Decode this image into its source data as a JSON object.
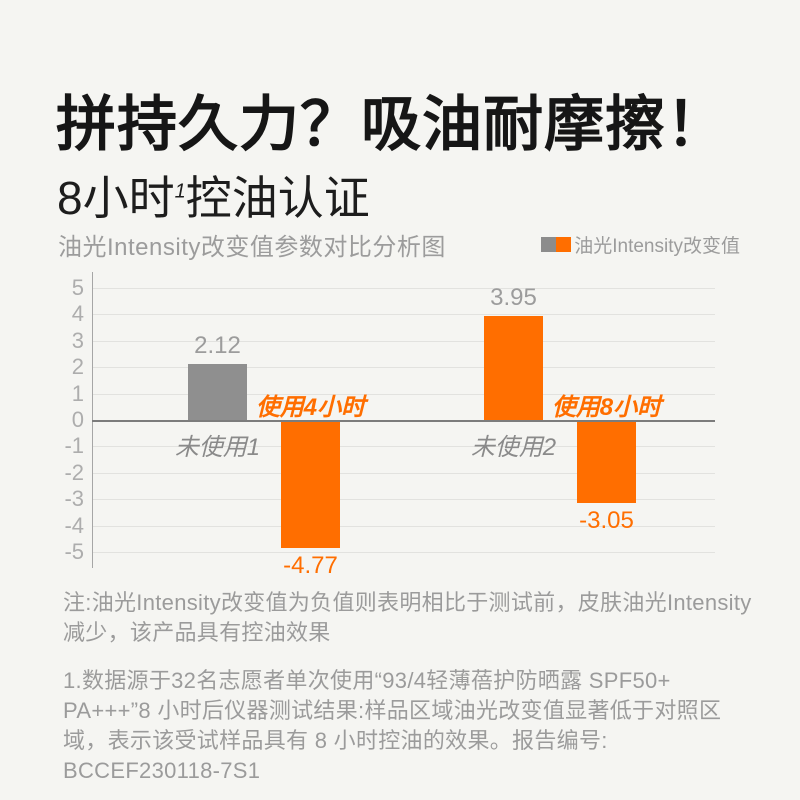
{
  "page": {
    "title": "拼持久力？吸油耐摩擦！",
    "subtitle_prefix": "8小时",
    "subtitle_sup": "1",
    "subtitle_suffix": "控油认证"
  },
  "chart": {
    "title": "油光Intensity改变值参数对比分析图",
    "legend_label": "油光Intensity改变值",
    "legend_swatch_colors": [
      "#8c8c8c",
      "#ff6e00"
    ]
  },
  "chart_data": {
    "type": "bar",
    "title": "油光Intensity改变值参数对比分析图",
    "legend": [
      "油光Intensity改变值"
    ],
    "categories": [
      "未使用1",
      "使用4小时",
      "未使用2",
      "使用8小时"
    ],
    "values": [
      2.12,
      -4.77,
      3.95,
      -3.05
    ],
    "value_labels": [
      "2.12",
      "-4.77",
      "3.95",
      "-3.05"
    ],
    "bar_colors": [
      "#8f8f8f",
      "#ff6e00",
      "#ff6e00",
      "#ff6e00"
    ],
    "ylim": [
      -5,
      5
    ],
    "ytick_step": 1,
    "yticks": [
      5,
      4,
      3,
      2,
      1,
      0,
      -1,
      -2,
      -3,
      -4,
      -5
    ],
    "grid": true,
    "legend_position": "top-right",
    "xlabel": "",
    "ylabel": ""
  },
  "notes": {
    "note": "注:油光Intensity改变值为负值则表明相比于测试前，皮肤油光Intensity减少，该产品具有控油效果",
    "footnote": "1.数据源于32名志愿者单次使用“93/4轻薄蓓护防晒露 SPF50+ PA+++”8 小时后仪器测试结果:样品区域油光改变值显著低于对照区域，表示该受试样品具有 8 小时控油的效果。报告编号: BCCEF230118-7S1"
  },
  "colors": {
    "background": "#f5f5f2",
    "accent_orange": "#ff6e00",
    "bar_gray": "#8f8f8f",
    "title_text": "#161616",
    "muted_text": "#9b9b9b",
    "value_label_gray": "#9c9c9c"
  }
}
